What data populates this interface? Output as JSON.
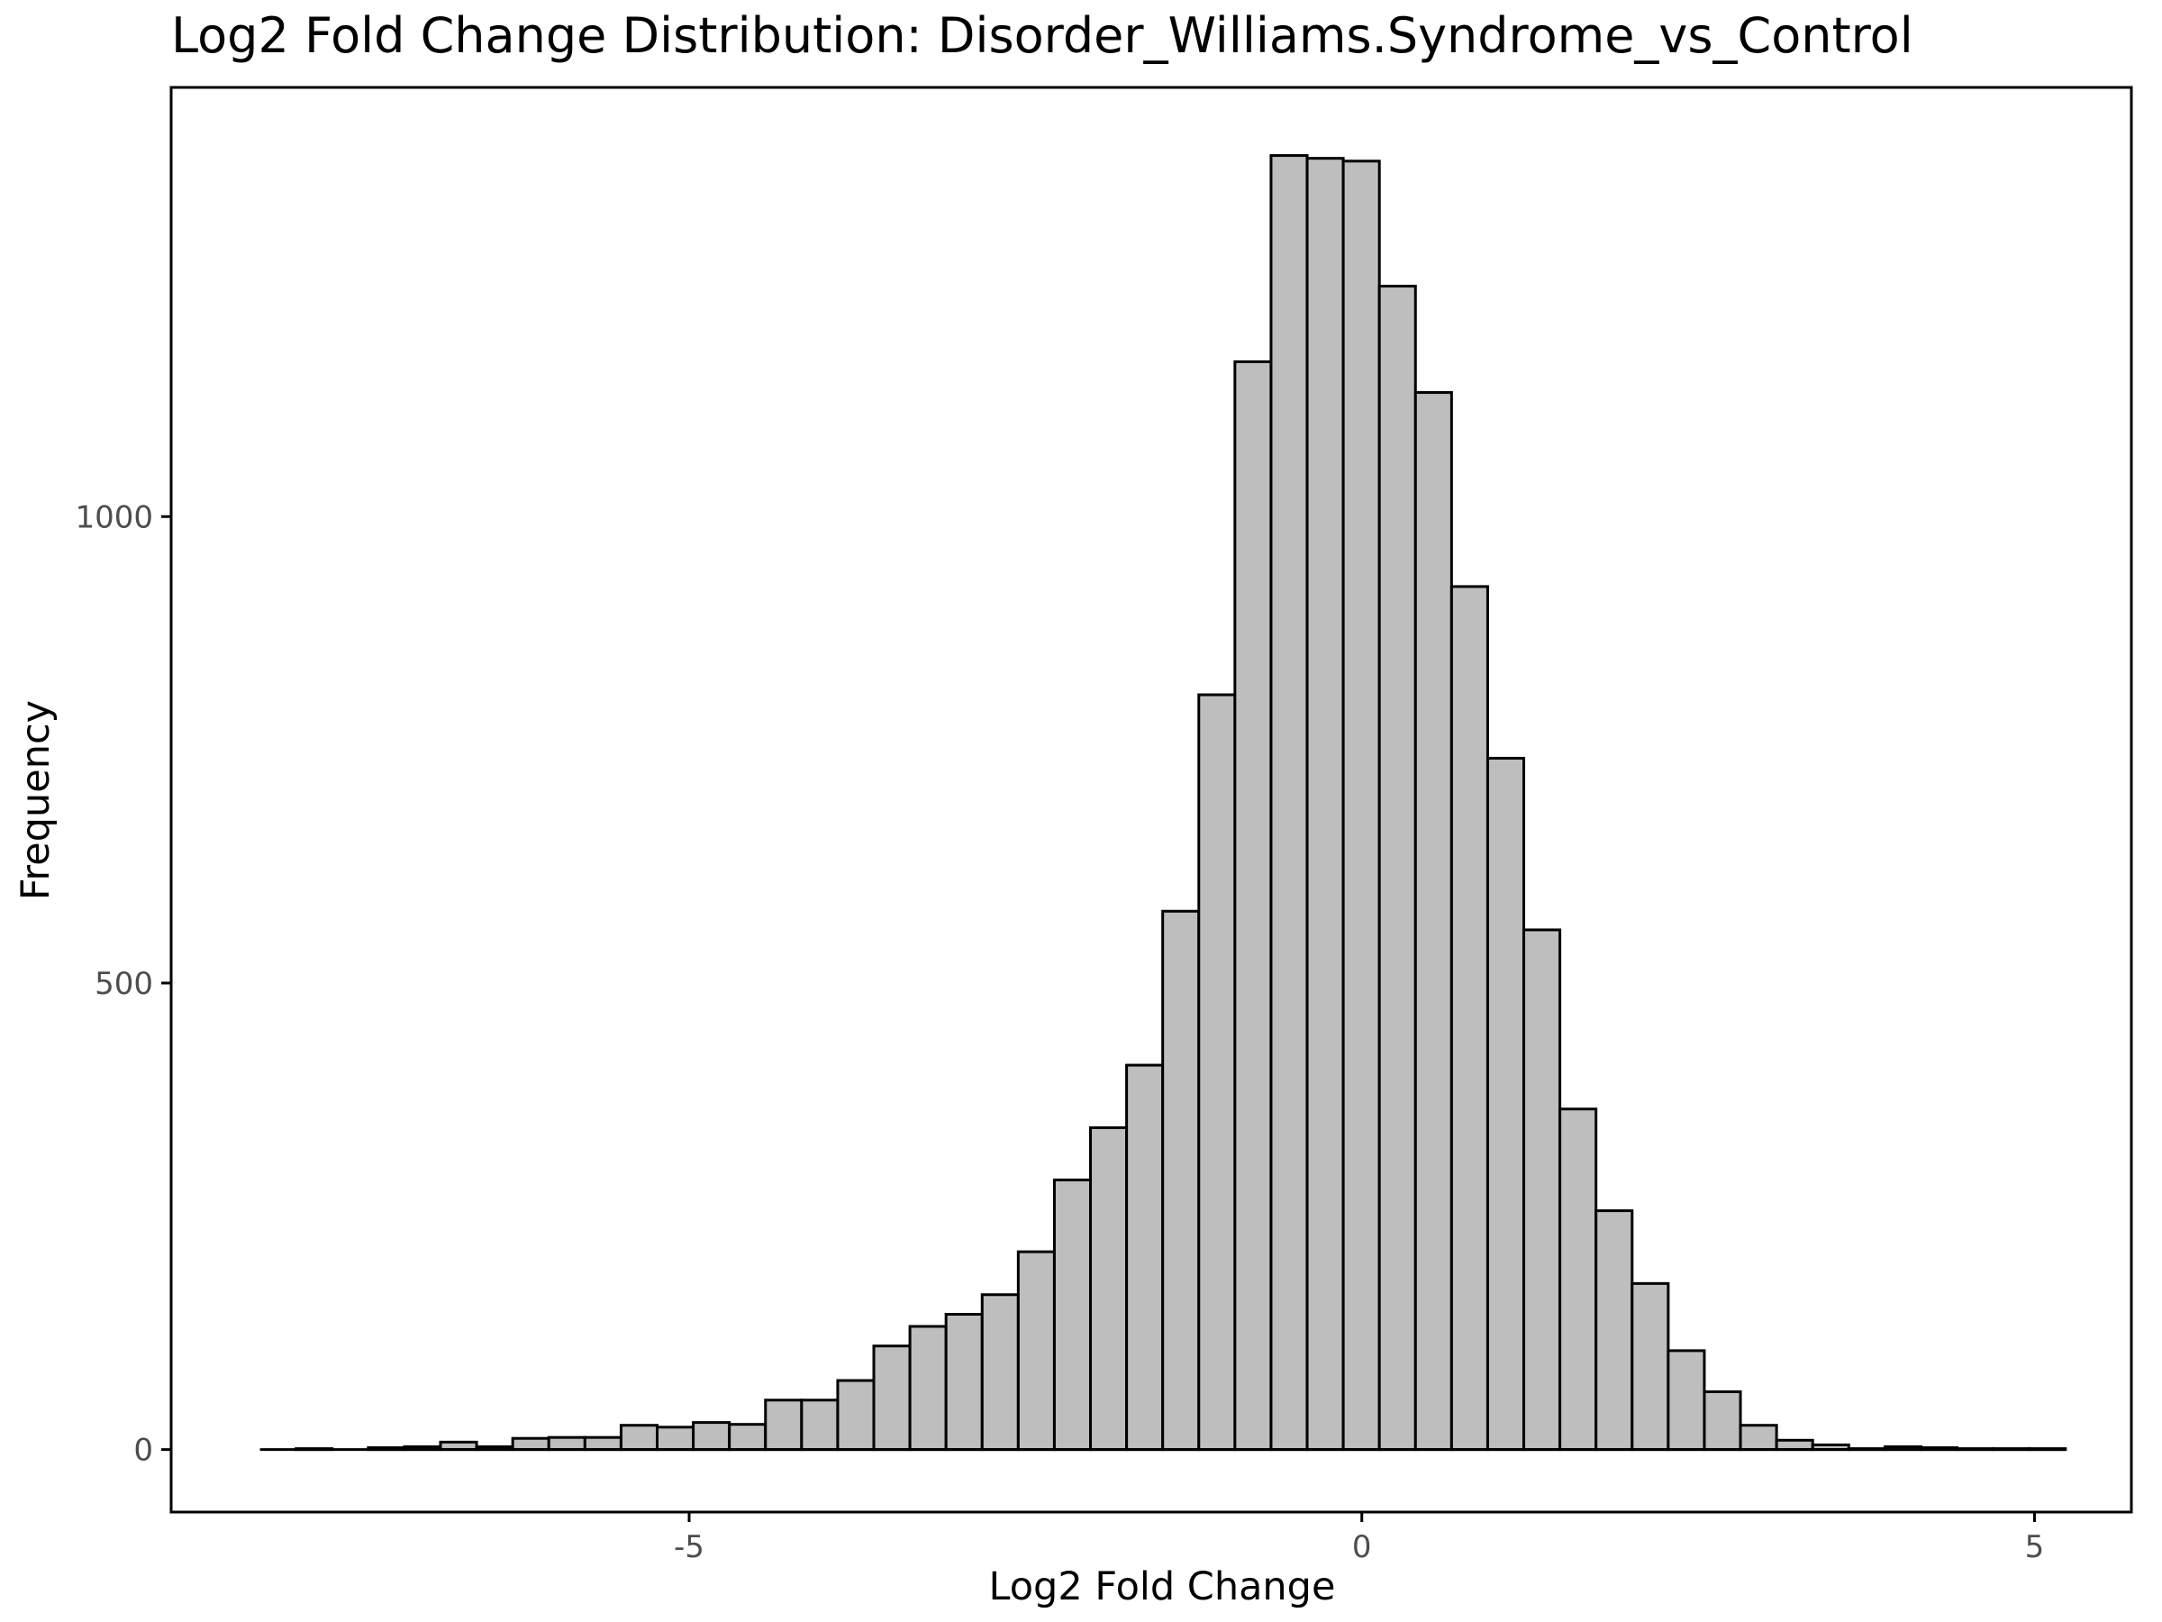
{
  "chart_data": {
    "type": "bar",
    "subtype": "histogram",
    "title": "Log2 Fold Change Distribution: Disorder_Williams.Syndrome_vs_Control",
    "xlabel": "Log2 Fold Change",
    "ylabel": "Frequency",
    "xlim": [
      -8.85,
      5.72
    ],
    "ylim": [
      -67,
      1460
    ],
    "x_ticks": [
      -5,
      0,
      5
    ],
    "x_tick_labels": [
      "-5",
      "0",
      "5"
    ],
    "y_ticks": [
      0,
      500,
      1000
    ],
    "y_tick_labels": [
      "0",
      "500",
      "1000"
    ],
    "bin_width": 0.2684,
    "bin_start": -8.19,
    "values": [
      0,
      1,
      0,
      2,
      3,
      8,
      3,
      12,
      13,
      13,
      26,
      24,
      29,
      27,
      53,
      53,
      74,
      111,
      132,
      145,
      166,
      212,
      289,
      345,
      412,
      577,
      809,
      1166,
      1387,
      1384,
      1381,
      1247,
      1133,
      925,
      741,
      557,
      365,
      256,
      178,
      106,
      62,
      26,
      10,
      5,
      1,
      3,
      2,
      1,
      1,
      1
    ],
    "grid": false,
    "legend": "none",
    "colors": {
      "bar_fill": "#bebebe",
      "bar_stroke": "#000000",
      "axis": "#000000",
      "tick_label": "#4d4d4d",
      "background": "#ffffff"
    }
  }
}
